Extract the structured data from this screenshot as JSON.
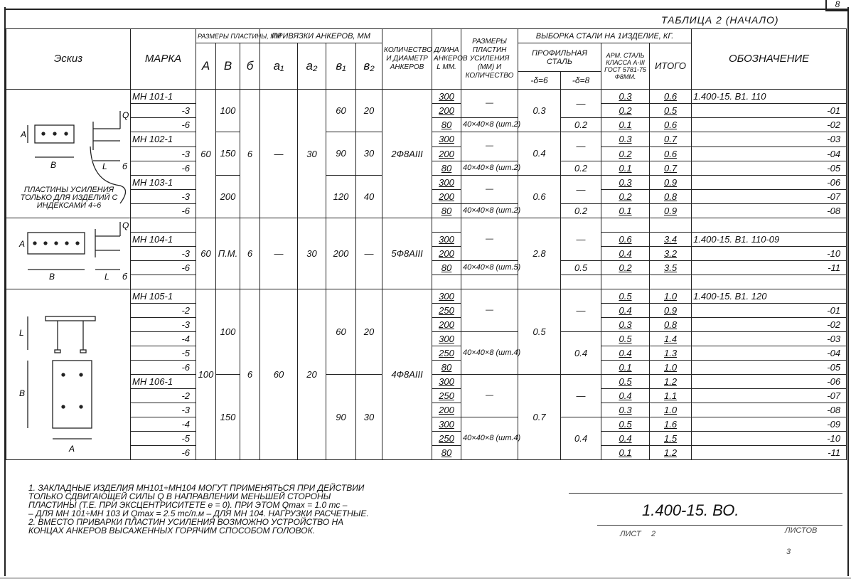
{
  "page_number": "8",
  "caption": "ТАБЛИЦА 2 (НАЧАЛО)",
  "headers": {
    "sketch": "Эскиз",
    "mark": "МАРКА",
    "plate_dims": "РАЗМЕРЫ ПЛАСТИНЫ, ММ",
    "anchor_ties": "ПРИВЯЗКИ АНКЕРОВ, ММ",
    "A": "А",
    "B": "В",
    "d": "б",
    "a1": "a₁",
    "a2": "a₂",
    "b1": "в₁",
    "b2": "в₂",
    "qty": "КОЛИЧЕСТВО И ДИАМЕТР АНКЕРОВ",
    "L": "ДЛИНА АНКЕРОВ L ММ.",
    "plates": "РАЗМЕРЫ ПЛАСТИН УСИЛЕНИЯ (ММ) И КОЛИЧЕСТВО",
    "steel": "ВЫБОРКА СТАЛИ НА 1ИЗДЕЛИЕ, КГ.",
    "profile": "ПРОФИЛЬНАЯ СТАЛЬ",
    "s6": "-δ=6",
    "s8": "-δ=8",
    "arm": "АРМ. СТАЛЬ КЛАССА А-III ГОСТ 5781-75 Ф8ММ.",
    "total": "ИТОГО",
    "code": "ОБОЗНАЧЕНИЕ"
  },
  "sketch_note": "ПЛАСТИНЫ УСИЛЕНИЯ ТОЛЬКО ДЛЯ ИЗДЕЛИЙ С ИНДЕКСАМИ 4÷6",
  "sketch_labels": {
    "force": "Q",
    "length": "L",
    "width": "В",
    "height": "А",
    "thickness": "б"
  },
  "groups": [
    {
      "rows": 9,
      "cols": {
        "mark": [
          {
            "v": "МН 101-1",
            "a": "l"
          },
          {
            "v": "-3"
          },
          {
            "v": "-6"
          },
          {
            "v": "МН 102-1",
            "a": "l"
          },
          {
            "v": "-3"
          },
          {
            "v": "-6"
          },
          {
            "v": "МН 103-1",
            "a": "l"
          },
          {
            "v": "-3"
          },
          {
            "v": "-6"
          }
        ],
        "A": [
          {
            "v": "60",
            "n": 9
          }
        ],
        "B": [
          {
            "v": "100",
            "n": 3
          },
          {
            "v": "150",
            "n": 3
          },
          {
            "v": "200",
            "n": 3
          }
        ],
        "d": [
          {
            "v": "6",
            "n": 9
          }
        ],
        "a1": [
          {
            "v": "—",
            "n": 9
          }
        ],
        "a2": [
          {
            "v": "30",
            "n": 9
          }
        ],
        "b1": [
          {
            "v": "60",
            "n": 3
          },
          {
            "v": "90",
            "n": 3
          },
          {
            "v": "120",
            "n": 3
          }
        ],
        "b2": [
          {
            "v": "20",
            "n": 3
          },
          {
            "v": "30",
            "n": 3
          },
          {
            "v": "40",
            "n": 3
          }
        ],
        "qty": [
          {
            "v": "2Ф8АIII",
            "n": 9
          }
        ],
        "L": [
          {
            "v": "300"
          },
          {
            "v": "200"
          },
          {
            "v": "80"
          },
          {
            "v": "300"
          },
          {
            "v": "200"
          },
          {
            "v": "80"
          },
          {
            "v": "300"
          },
          {
            "v": "200"
          },
          {
            "v": "80"
          }
        ],
        "plates": [
          {
            "v": "—",
            "n": 2
          },
          {
            "v": "40×40×8 (шт.2)"
          },
          {
            "v": "—",
            "n": 2
          },
          {
            "v": "40×40×8 (шт.2)"
          },
          {
            "v": "—",
            "n": 2
          },
          {
            "v": "40×40×8 (шт.2)"
          }
        ],
        "s6": [
          {
            "v": "0.3",
            "n": 3
          },
          {
            "v": "0.4",
            "n": 3
          },
          {
            "v": "0.6",
            "n": 3
          }
        ],
        "s8": [
          {
            "v": "—",
            "n": 2
          },
          {
            "v": "0.2"
          },
          {
            "v": "—",
            "n": 2
          },
          {
            "v": "0.2"
          },
          {
            "v": "—",
            "n": 2
          },
          {
            "v": "0.2"
          }
        ],
        "arm": [
          {
            "v": "0.3"
          },
          {
            "v": "0.2"
          },
          {
            "v": "0.1"
          },
          {
            "v": "0.3"
          },
          {
            "v": "0.2"
          },
          {
            "v": "0.1"
          },
          {
            "v": "0.3"
          },
          {
            "v": "0.2"
          },
          {
            "v": "0.1"
          }
        ],
        "total": [
          {
            "v": "0.6"
          },
          {
            "v": "0.5"
          },
          {
            "v": "0.6"
          },
          {
            "v": "0.7"
          },
          {
            "v": "0.6"
          },
          {
            "v": "0.7"
          },
          {
            "v": "0.9"
          },
          {
            "v": "0.8"
          },
          {
            "v": "0.9"
          }
        ],
        "code": [
          {
            "v": "1.400-15. В1. 110",
            "a": "l"
          },
          {
            "v": "-01"
          },
          {
            "v": "-02"
          },
          {
            "v": "-03"
          },
          {
            "v": "-04"
          },
          {
            "v": "-05"
          },
          {
            "v": "-06"
          },
          {
            "v": "-07"
          },
          {
            "v": "-08"
          }
        ]
      }
    },
    {
      "rows": 5,
      "cols": {
        "mark": [
          {
            "v": ""
          },
          {
            "v": "МН 104-1",
            "a": "l"
          },
          {
            "v": "-3"
          },
          {
            "v": "-6"
          },
          {
            "v": ""
          }
        ],
        "A": [
          {
            "v": "60",
            "n": 5
          }
        ],
        "B": [
          {
            "v": "П.М.",
            "n": 5
          }
        ],
        "d": [
          {
            "v": "6",
            "n": 5
          }
        ],
        "a1": [
          {
            "v": "—",
            "n": 5
          }
        ],
        "a2": [
          {
            "v": "30",
            "n": 5
          }
        ],
        "b1": [
          {
            "v": "200",
            "n": 5
          }
        ],
        "b2": [
          {
            "v": "—",
            "n": 5
          }
        ],
        "qty": [
          {
            "v": "5Ф8АIII",
            "n": 5
          }
        ],
        "L": [
          {
            "v": ""
          },
          {
            "v": "300"
          },
          {
            "v": "200"
          },
          {
            "v": "80"
          },
          {
            "v": ""
          }
        ],
        "plates": [
          {
            "v": "—",
            "n": 3
          },
          {
            "v": "40×40×8 (шт.5)"
          },
          {
            "v": ""
          }
        ],
        "s6": [
          {
            "v": "2.8",
            "n": 5
          }
        ],
        "s8": [
          {
            "v": "—",
            "n": 3
          },
          {
            "v": "0.5"
          },
          {
            "v": ""
          }
        ],
        "arm": [
          {
            "v": ""
          },
          {
            "v": "0.6"
          },
          {
            "v": "0.4"
          },
          {
            "v": "0.2"
          },
          {
            "v": ""
          }
        ],
        "total": [
          {
            "v": ""
          },
          {
            "v": "3.4"
          },
          {
            "v": "3.2"
          },
          {
            "v": "3.5"
          },
          {
            "v": ""
          }
        ],
        "code": [
          {
            "v": ""
          },
          {
            "v": "1.400-15. В1. 110-09",
            "a": "l"
          },
          {
            "v": "-10"
          },
          {
            "v": "-11"
          },
          {
            "v": ""
          }
        ]
      }
    },
    {
      "rows": 12,
      "cols": {
        "mark": [
          {
            "v": "МН 105-1",
            "a": "l"
          },
          {
            "v": "-2"
          },
          {
            "v": "-3"
          },
          {
            "v": "-4"
          },
          {
            "v": "-5"
          },
          {
            "v": "-6"
          },
          {
            "v": "МН 106-1",
            "a": "l"
          },
          {
            "v": "-2"
          },
          {
            "v": "-3"
          },
          {
            "v": "-4"
          },
          {
            "v": "-5"
          },
          {
            "v": "-6"
          }
        ],
        "A": [
          {
            "v": "100",
            "n": 12
          }
        ],
        "B": [
          {
            "v": "100",
            "n": 6
          },
          {
            "v": "150",
            "n": 6
          }
        ],
        "d": [
          {
            "v": "6",
            "n": 12
          }
        ],
        "a1": [
          {
            "v": "60",
            "n": 12
          }
        ],
        "a2": [
          {
            "v": "20",
            "n": 12
          }
        ],
        "b1": [
          {
            "v": "60",
            "n": 6
          },
          {
            "v": "90",
            "n": 6
          }
        ],
        "b2": [
          {
            "v": "20",
            "n": 6
          },
          {
            "v": "30",
            "n": 6
          }
        ],
        "qty": [
          {
            "v": "4Ф8АIII",
            "n": 12
          }
        ],
        "L": [
          {
            "v": "300"
          },
          {
            "v": "250"
          },
          {
            "v": "200"
          },
          {
            "v": "300"
          },
          {
            "v": "250"
          },
          {
            "v": "80"
          },
          {
            "v": "300"
          },
          {
            "v": "250"
          },
          {
            "v": "200"
          },
          {
            "v": "300"
          },
          {
            "v": "250"
          },
          {
            "v": "80"
          }
        ],
        "plates": [
          {
            "v": "—",
            "n": 3
          },
          {
            "v": "40×40×8 (шт.4)",
            "n": 3
          },
          {
            "v": "—",
            "n": 3
          },
          {
            "v": "40×40×8 (шт.4)",
            "n": 3
          }
        ],
        "s6": [
          {
            "v": "0.5",
            "n": 6
          },
          {
            "v": "0.7",
            "n": 6
          }
        ],
        "s8": [
          {
            "v": "—",
            "n": 3
          },
          {
            "v": "0.4",
            "n": 3
          },
          {
            "v": "—",
            "n": 3
          },
          {
            "v": "0.4",
            "n": 3
          }
        ],
        "arm": [
          {
            "v": "0.5"
          },
          {
            "v": "0.4"
          },
          {
            "v": "0.3"
          },
          {
            "v": "0.5"
          },
          {
            "v": "0.4"
          },
          {
            "v": "0.1"
          },
          {
            "v": "0.5"
          },
          {
            "v": "0.4"
          },
          {
            "v": "0.3"
          },
          {
            "v": "0.5"
          },
          {
            "v": "0.4"
          },
          {
            "v": "0.1"
          }
        ],
        "total": [
          {
            "v": "1.0"
          },
          {
            "v": "0.9"
          },
          {
            "v": "0.8"
          },
          {
            "v": "1.4"
          },
          {
            "v": "1.3"
          },
          {
            "v": "1.0"
          },
          {
            "v": "1.2"
          },
          {
            "v": "1.1"
          },
          {
            "v": "1.0"
          },
          {
            "v": "1.6"
          },
          {
            "v": "1.5"
          },
          {
            "v": "1.2"
          }
        ],
        "code": [
          {
            "v": "1.400-15. В1. 120",
            "a": "l"
          },
          {
            "v": "-01"
          },
          {
            "v": "-02"
          },
          {
            "v": "-03"
          },
          {
            "v": "-04"
          },
          {
            "v": "-05"
          },
          {
            "v": "-06"
          },
          {
            "v": "-07"
          },
          {
            "v": "-08"
          },
          {
            "v": "-09"
          },
          {
            "v": "-10"
          },
          {
            "v": "-11"
          }
        ]
      }
    }
  ],
  "notes": "1. ЗАКЛАДНЫЕ ИЗДЕЛИЯ МН101÷МН104 МОГУТ ПРИМЕНЯТЬСЯ ПРИ ДЕЙСТВИИ\n    ТОЛЬКО СДВИГАЮЩЕЙ СИЛЫ Q В НАПРАВЛЕНИИ МЕНЬШЕЙ СТОРОНЫ\n    ПЛАСТИНЫ (Т.Е. ПРИ ЭКСЦЕНТРИСИТЕТЕ  е = 0). ПРИ ЭТОМ Qmax = 1.0 тс –\n    – ДЛЯ МН 101÷МН 103 И Qmax = 2.5 тс/п.м – ДЛЯ МН 104. НАГРУЗКИ РАСЧЕТНЫЕ.\n2. ВМЕСТО ПРИВАРКИ ПЛАСТИН УСИЛЕНИЯ ВОЗМОЖНО УСТРОЙСТВО НА\n    КОНЦАХ АНКЕРОВ ВЫСАЖЕННЫХ ГОРЯЧИМ СПОСОБОМ ГОЛОВОК.",
  "title_block": {
    "code": "1.400-15. ВО.",
    "sheet_label": "ЛИСТ",
    "sheets_label": "ЛИСТОВ",
    "sheet": "2",
    "sheets": "3"
  }
}
